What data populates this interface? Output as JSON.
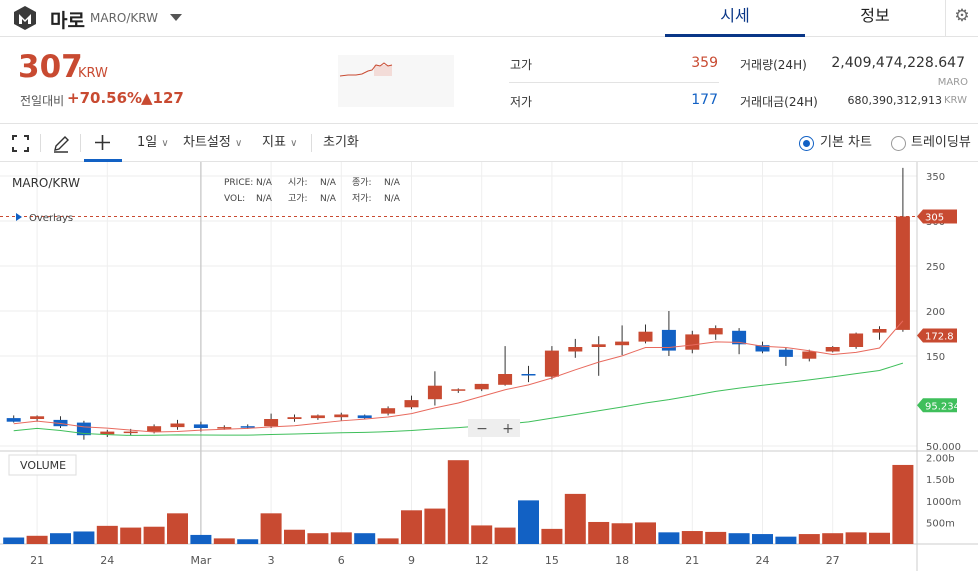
{
  "header": {
    "coin_name": "마로",
    "pair": "MARO/KRW",
    "tab_price": "시세",
    "tab_info": "정보",
    "settings_icon": "gear-icon",
    "brand_color": "#093687"
  },
  "summary": {
    "price": "307",
    "currency": "KRW",
    "change_label": "전일대비",
    "change_pct": "+70.56%",
    "change_abs": "▲127",
    "high_label": "고가",
    "high": "359",
    "low_label": "저가",
    "low": "177",
    "volume_label": "거래량(24H)",
    "volume": "2,409,474,228.647",
    "volume_unit": "MARO",
    "amount_label": "거래대금(24H)",
    "amount": "680,390,312,913",
    "amount_unit": "KRW",
    "up_color": "#c84a31",
    "down_color": "#1261c4"
  },
  "toolbar": {
    "period": "1일",
    "chart_settings": "차트설정",
    "indicators": "지표",
    "reset": "초기화",
    "basic_chart": "기본 차트",
    "tradingview": "트레이딩뷰"
  },
  "chart_data": {
    "type": "candlestick",
    "symbol": "MARO/KRW",
    "info_labels": {
      "price": "PRICE:",
      "price_v": "N/A",
      "open": "시가:",
      "open_v": "N/A",
      "close": "종가:",
      "close_v": "N/A",
      "vol": "VOL:",
      "vol_v": "N/A",
      "high": "고가:",
      "high_v": "N/A",
      "low": "저가:",
      "low_v": "N/A"
    },
    "overlays_label": "Overlays",
    "volume_label": "VOLUME",
    "y_ticks": [
      "350",
      "300",
      "250",
      "200",
      "150",
      "50.000"
    ],
    "y_tick_values": [
      350,
      300,
      250,
      200,
      150,
      50
    ],
    "vol_ticks": [
      "2.00b",
      "1.50b",
      "1000m",
      "500m"
    ],
    "vol_tick_values": [
      2000,
      1500,
      1000,
      500
    ],
    "x_ticks": [
      {
        "label": "21",
        "i": 1
      },
      {
        "label": "24",
        "i": 4
      },
      {
        "label": "Mar",
        "i": 8
      },
      {
        "label": "3",
        "i": 11
      },
      {
        "label": "6",
        "i": 14
      },
      {
        "label": "9",
        "i": 17
      },
      {
        "label": "12",
        "i": 20
      },
      {
        "label": "15",
        "i": 23
      },
      {
        "label": "18",
        "i": 26
      },
      {
        "label": "21",
        "i": 29
      },
      {
        "label": "24",
        "i": 32
      },
      {
        "label": "27",
        "i": 35
      }
    ],
    "candles": [
      {
        "o": 81,
        "h": 84,
        "l": 76,
        "c": 77
      },
      {
        "o": 80,
        "h": 84,
        "l": 77,
        "c": 83
      },
      {
        "o": 79,
        "h": 83,
        "l": 70,
        "c": 72
      },
      {
        "o": 76,
        "h": 78,
        "l": 57,
        "c": 62
      },
      {
        "o": 63,
        "h": 68,
        "l": 60,
        "c": 66
      },
      {
        "o": 65,
        "h": 69,
        "l": 62,
        "c": 66
      },
      {
        "o": 66,
        "h": 74,
        "l": 64,
        "c": 72
      },
      {
        "o": 71,
        "h": 79,
        "l": 68,
        "c": 75
      },
      {
        "o": 74,
        "h": 77,
        "l": 66,
        "c": 70
      },
      {
        "o": 71,
        "h": 73,
        "l": 68,
        "c": 71
      },
      {
        "o": 72,
        "h": 74,
        "l": 69,
        "c": 71
      },
      {
        "o": 72,
        "h": 86,
        "l": 70,
        "c": 80
      },
      {
        "o": 80,
        "h": 85,
        "l": 77,
        "c": 82
      },
      {
        "o": 81,
        "h": 85,
        "l": 79,
        "c": 84
      },
      {
        "o": 82,
        "h": 87,
        "l": 78,
        "c": 85
      },
      {
        "o": 84,
        "h": 85,
        "l": 80,
        "c": 81
      },
      {
        "o": 86,
        "h": 94,
        "l": 84,
        "c": 92
      },
      {
        "o": 93,
        "h": 106,
        "l": 91,
        "c": 101
      },
      {
        "o": 102,
        "h": 133,
        "l": 95,
        "c": 117
      },
      {
        "o": 112,
        "h": 114,
        "l": 109,
        "c": 113
      },
      {
        "o": 113,
        "h": 119,
        "l": 111,
        "c": 119
      },
      {
        "o": 118,
        "h": 161,
        "l": 117,
        "c": 130
      },
      {
        "o": 130,
        "h": 139,
        "l": 121,
        "c": 129
      },
      {
        "o": 127,
        "h": 161,
        "l": 124,
        "c": 156
      },
      {
        "o": 155,
        "h": 169,
        "l": 148,
        "c": 160
      },
      {
        "o": 160,
        "h": 172,
        "l": 128,
        "c": 163
      },
      {
        "o": 162,
        "h": 184,
        "l": 151,
        "c": 166
      },
      {
        "o": 166,
        "h": 185,
        "l": 164,
        "c": 177
      },
      {
        "o": 179,
        "h": 200,
        "l": 150,
        "c": 156
      },
      {
        "o": 157,
        "h": 178,
        "l": 153,
        "c": 174
      },
      {
        "o": 174,
        "h": 184,
        "l": 168,
        "c": 181
      },
      {
        "o": 178,
        "h": 181,
        "l": 152,
        "c": 163
      },
      {
        "o": 162,
        "h": 166,
        "l": 153,
        "c": 155
      },
      {
        "o": 157,
        "h": 159,
        "l": 139,
        "c": 149
      },
      {
        "o": 147,
        "h": 157,
        "l": 144,
        "c": 155
      },
      {
        "o": 155,
        "h": 161,
        "l": 154,
        "c": 160
      },
      {
        "o": 160,
        "h": 176,
        "l": 158,
        "c": 175
      },
      {
        "o": 176,
        "h": 183,
        "l": 168,
        "c": 180
      },
      {
        "o": 179,
        "h": 359,
        "l": 177,
        "c": 305
      }
    ],
    "volumes": [
      150,
      190,
      250,
      290,
      420,
      380,
      400,
      710,
      210,
      130,
      110,
      710,
      330,
      250,
      270,
      250,
      130,
      780,
      820,
      1940,
      430,
      380,
      1010,
      350,
      1160,
      510,
      480,
      500,
      270,
      300,
      280,
      250,
      230,
      170,
      230,
      250,
      270,
      260,
      1830
    ],
    "ma_short_label": "172.8",
    "ma_long_label": "95.234",
    "current_label": "305",
    "ma_short_color": "#e86a5e",
    "ma_long_color": "#3fbf5b",
    "zoom_minus": "−",
    "zoom_plus": "+"
  }
}
